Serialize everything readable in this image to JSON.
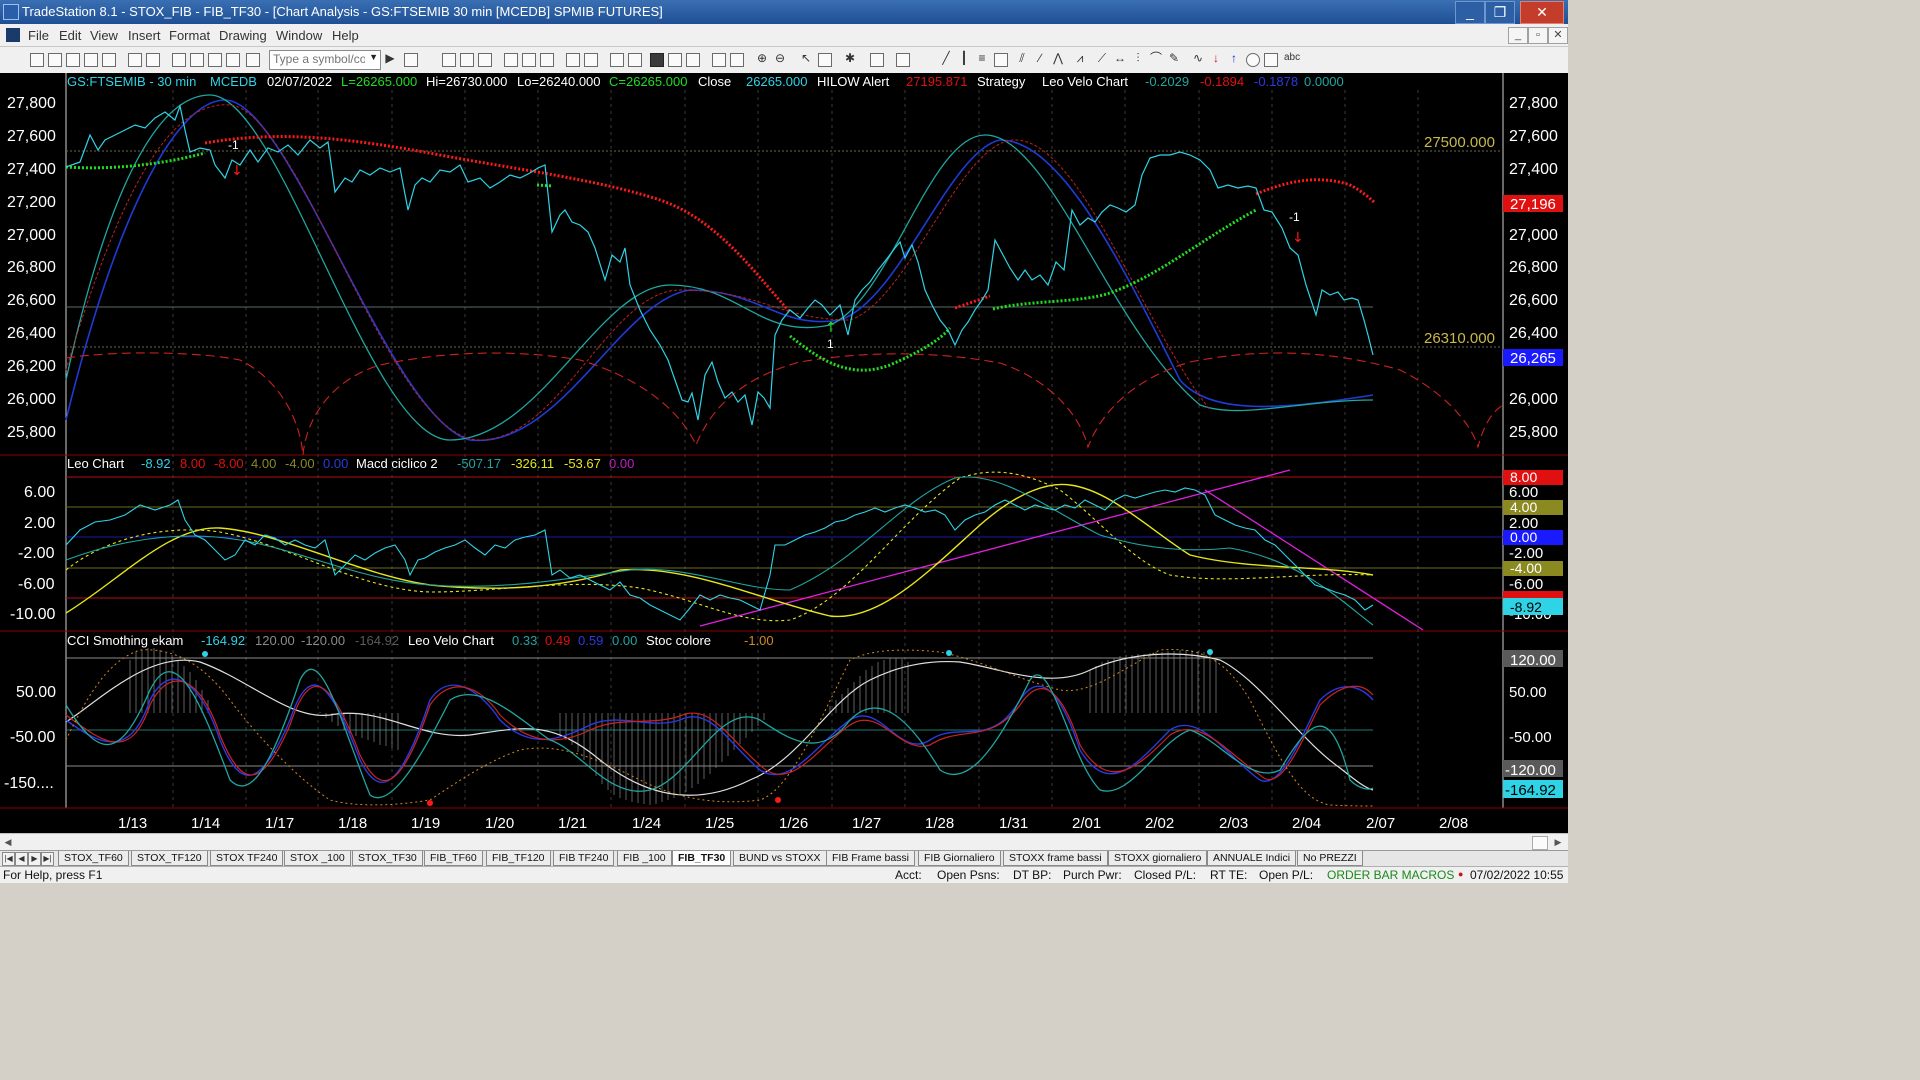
{
  "window": {
    "title": "TradeStation 8.1 - STOX_FIB - FIB_TF30 - [Chart Analysis - GS:FTSEMIB  30 min  [MCEDB] SPMIB FUTURES]",
    "minimize": "_",
    "maximize": "❐",
    "close": "✕"
  },
  "menu": {
    "items": [
      "File",
      "Edit",
      "View",
      "Insert",
      "Format",
      "Drawing",
      "Window",
      "Help"
    ],
    "mdi_buttons": [
      "_",
      "▫",
      "✕"
    ]
  },
  "toolbar": {
    "symbol_placeholder": "Type a symbol/co",
    "text_tool": "abc"
  },
  "price_panel": {
    "info": {
      "symbol": "GS:FTSEMIB - 30 min",
      "data_source": "MCEDB",
      "date": "02/07/2022",
      "last": "L=26265.000",
      "high": "Hi=26730.000",
      "low": "Lo=26240.000",
      "close_value": "C=26265.000",
      "close_label": "Close",
      "close_num": "26265.000",
      "hilow_label": "HILOW Alert",
      "hilow_value": "27195.871",
      "strategy_label": "Strategy",
      "velo_label": "Leo Velo Chart",
      "velo_v1": "-0.2029",
      "velo_v2": "-0.1894",
      "velo_v3": "-0.1878",
      "velo_v4": "0.0000"
    },
    "y_ticks": [
      "27,800",
      "27,600",
      "27,400",
      "27,200",
      "27,000",
      "26,800",
      "26,600",
      "26,400",
      "26,200",
      "26,000",
      "25,800"
    ],
    "level_upper": "27500.000",
    "level_lower": "26310.000",
    "tag_hilow": "27,196",
    "tag_price": "26,265",
    "signal_sell": "-1",
    "signal_buy": "1"
  },
  "leo_panel": {
    "info": {
      "name": "Leo Chart",
      "v1": "-8.92",
      "v2": "8.00",
      "v3": "-8.00",
      "v4": "4.00",
      "v5": "-4.00",
      "v6": "0.00",
      "macd_name": "Macd ciclico 2",
      "m1": "-507.17",
      "m2": "-326.11",
      "m3": "-53.67",
      "m4": "0.00"
    },
    "y_ticks": [
      "6.00",
      "2.00",
      "-2.00",
      "-6.00",
      "-10.00"
    ],
    "tags": {
      "t8": "8.00",
      "t4": "4.00",
      "t0": "0.00",
      "tm4": "-4.00",
      "tm8": "-8.00",
      "tcur": "-8.92"
    }
  },
  "cci_panel": {
    "info": {
      "name": "CCI Smothing ekam",
      "c1": "-164.92",
      "c2": "120.00",
      "c3": "-120.00",
      "c4": "-164.92",
      "velo_name": "Leo Velo Chart",
      "v1": "0.33",
      "v2": "0.49",
      "v3": "0.59",
      "v4": "0.00",
      "stoc_name": "Stoc colore",
      "stoc_value": "-1.00"
    },
    "y_ticks": [
      "50.00",
      "-50.00",
      "-150...."
    ],
    "tags": {
      "t120": "120.00",
      "t50": "50.00",
      "tm50": "-50.00",
      "tm120": "-120.00",
      "tcur": "-164.92"
    }
  },
  "x_axis": [
    "1/13",
    "1/14",
    "1/17",
    "1/18",
    "1/19",
    "1/20",
    "1/21",
    "1/24",
    "1/25",
    "1/26",
    "1/27",
    "1/28",
    "1/31",
    "2/01",
    "2/02",
    "2/03",
    "2/04",
    "2/07",
    "2/08"
  ],
  "sheet_tabs": [
    "STOX_TF60",
    "STOX_TF120",
    "STOX TF240",
    "STOX _100",
    "STOX_TF30",
    "FIB_TF60",
    "FIB_TF120",
    "FIB TF240",
    "FIB _100",
    "FIB_TF30",
    "BUND vs STOXX",
    "FIB Frame bassi",
    "FIB Giornaliero",
    "STOXX frame bassi",
    "STOXX giornaliero",
    "ANNUALE Indici",
    "No PREZZI"
  ],
  "active_sheet": "FIB_TF30",
  "status": {
    "help": "For Help, press F1",
    "acct": "Acct:",
    "open_psns": "Open Psns:",
    "dt_bp": "DT BP:",
    "purch_pwr": "Purch Pwr:",
    "closed_pl": "Closed P/L:",
    "rt_te": "RT TE:",
    "open_pl": "Open P/L:",
    "order_bar": "ORDER BAR MACROS",
    "datetime": "07/02/2022 10:55"
  },
  "colors": {
    "price": "#2fd3e6",
    "hilow_red": "#ff1a1a",
    "hilow_green": "#22dd22",
    "wave_blue": "#1f3bd6",
    "wave_teal": "#1fa6a0",
    "wave_red": "#cc2222",
    "yellow": "#e6e61a",
    "magenta": "#e020e0",
    "level_text": "#c9b94a",
    "tag_red": "#e01010",
    "tag_blue": "#1a1aff"
  },
  "chart_data": [
    {
      "type": "line",
      "title": "GS:FTSEMIB - 30 min",
      "x": [
        "1/13",
        "1/14",
        "1/17",
        "1/18",
        "1/19",
        "1/20",
        "1/21",
        "1/24",
        "1/25",
        "1/26",
        "1/27",
        "1/28",
        "1/31",
        "2/01",
        "2/02",
        "2/03",
        "2/04",
        "2/07"
      ],
      "series": [
        {
          "name": "Close",
          "values": [
            27650,
            27480,
            27560,
            27300,
            27250,
            27300,
            27100,
            26300,
            25900,
            26500,
            26800,
            26400,
            26700,
            27100,
            27450,
            27300,
            26650,
            26265
          ]
        },
        {
          "name": "HILOW Alert",
          "values": [
            27450,
            27550,
            27580,
            27530,
            27460,
            27420,
            27330,
            27000,
            26700,
            26300,
            26200,
            26450,
            26600,
            26640,
            26800,
            27050,
            27320,
            27196
          ]
        }
      ],
      "ylim": [
        25700,
        27900
      ],
      "levels": [
        27500,
        26310
      ]
    },
    {
      "type": "line",
      "title": "Leo Chart",
      "x": [
        "1/13",
        "1/14",
        "1/17",
        "1/18",
        "1/19",
        "1/20",
        "1/21",
        "1/24",
        "1/25",
        "1/26",
        "1/27",
        "1/28",
        "1/31",
        "2/01",
        "2/02",
        "2/03",
        "2/04",
        "2/07"
      ],
      "series": [
        {
          "name": "Leo Chart",
          "values": [
            2.5,
            4.0,
            1.5,
            -2.0,
            -4.0,
            -2.0,
            -1.0,
            -8.0,
            -10.0,
            1.0,
            2.5,
            5.0,
            4.5,
            5.0,
            5.5,
            4.0,
            -4.0,
            -8.92
          ]
        },
        {
          "name": "Macd ciclico 2",
          "values": [
            -8.0,
            -3.0,
            0.0,
            -2.5,
            -5.0,
            -6.0,
            -5.5,
            -5.0,
            -7.0,
            -10.0,
            -8.0,
            1.0,
            6.0,
            2.0,
            -1.0,
            -4.0,
            -4.0,
            -4.5
          ]
        }
      ],
      "levels": [
        8,
        4,
        0,
        -4,
        -8
      ],
      "ylim": [
        -12,
        8
      ]
    },
    {
      "type": "line",
      "title": "CCI Smothing ekam",
      "x": [
        "1/13",
        "1/14",
        "1/17",
        "1/18",
        "1/19",
        "1/20",
        "1/21",
        "1/24",
        "1/25",
        "1/26",
        "1/27",
        "1/28",
        "1/31",
        "2/01",
        "2/02",
        "2/03",
        "2/04",
        "2/07"
      ],
      "series": [
        {
          "name": "CCI Smothing ekam",
          "values": [
            -20,
            100,
            80,
            -60,
            -90,
            -30,
            10,
            -150,
            -180,
            -60,
            20,
            120,
            110,
            60,
            150,
            130,
            -120,
            -164.92
          ]
        }
      ],
      "levels": [
        120,
        50,
        -50,
        -120
      ],
      "ylim": [
        -200,
        150
      ]
    }
  ]
}
